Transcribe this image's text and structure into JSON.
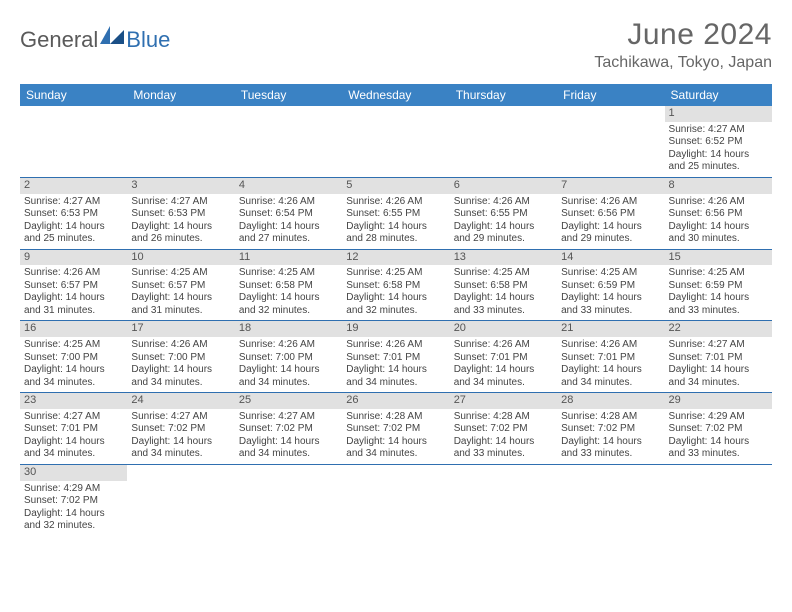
{
  "brand": {
    "general": "General",
    "blue": "Blue"
  },
  "title": "June 2024",
  "location": "Tachikawa, Tokyo, Japan",
  "colors": {
    "header_bg": "#3a82c4",
    "header_text": "#ffffff",
    "daynum_bg": "#e1e1e1",
    "border": "#2f6fb0",
    "logo_accent": "#2f6fb0",
    "text": "#444444"
  },
  "calendar": {
    "type": "table",
    "columns": [
      "Sunday",
      "Monday",
      "Tuesday",
      "Wednesday",
      "Thursday",
      "Friday",
      "Saturday"
    ],
    "weeks": [
      [
        null,
        null,
        null,
        null,
        null,
        null,
        {
          "n": "1",
          "sr": "Sunrise: 4:27 AM",
          "ss": "Sunset: 6:52 PM",
          "d1": "Daylight: 14 hours",
          "d2": "and 25 minutes."
        }
      ],
      [
        {
          "n": "2",
          "sr": "Sunrise: 4:27 AM",
          "ss": "Sunset: 6:53 PM",
          "d1": "Daylight: 14 hours",
          "d2": "and 25 minutes."
        },
        {
          "n": "3",
          "sr": "Sunrise: 4:27 AM",
          "ss": "Sunset: 6:53 PM",
          "d1": "Daylight: 14 hours",
          "d2": "and 26 minutes."
        },
        {
          "n": "4",
          "sr": "Sunrise: 4:26 AM",
          "ss": "Sunset: 6:54 PM",
          "d1": "Daylight: 14 hours",
          "d2": "and 27 minutes."
        },
        {
          "n": "5",
          "sr": "Sunrise: 4:26 AM",
          "ss": "Sunset: 6:55 PM",
          "d1": "Daylight: 14 hours",
          "d2": "and 28 minutes."
        },
        {
          "n": "6",
          "sr": "Sunrise: 4:26 AM",
          "ss": "Sunset: 6:55 PM",
          "d1": "Daylight: 14 hours",
          "d2": "and 29 minutes."
        },
        {
          "n": "7",
          "sr": "Sunrise: 4:26 AM",
          "ss": "Sunset: 6:56 PM",
          "d1": "Daylight: 14 hours",
          "d2": "and 29 minutes."
        },
        {
          "n": "8",
          "sr": "Sunrise: 4:26 AM",
          "ss": "Sunset: 6:56 PM",
          "d1": "Daylight: 14 hours",
          "d2": "and 30 minutes."
        }
      ],
      [
        {
          "n": "9",
          "sr": "Sunrise: 4:26 AM",
          "ss": "Sunset: 6:57 PM",
          "d1": "Daylight: 14 hours",
          "d2": "and 31 minutes."
        },
        {
          "n": "10",
          "sr": "Sunrise: 4:25 AM",
          "ss": "Sunset: 6:57 PM",
          "d1": "Daylight: 14 hours",
          "d2": "and 31 minutes."
        },
        {
          "n": "11",
          "sr": "Sunrise: 4:25 AM",
          "ss": "Sunset: 6:58 PM",
          "d1": "Daylight: 14 hours",
          "d2": "and 32 minutes."
        },
        {
          "n": "12",
          "sr": "Sunrise: 4:25 AM",
          "ss": "Sunset: 6:58 PM",
          "d1": "Daylight: 14 hours",
          "d2": "and 32 minutes."
        },
        {
          "n": "13",
          "sr": "Sunrise: 4:25 AM",
          "ss": "Sunset: 6:58 PM",
          "d1": "Daylight: 14 hours",
          "d2": "and 33 minutes."
        },
        {
          "n": "14",
          "sr": "Sunrise: 4:25 AM",
          "ss": "Sunset: 6:59 PM",
          "d1": "Daylight: 14 hours",
          "d2": "and 33 minutes."
        },
        {
          "n": "15",
          "sr": "Sunrise: 4:25 AM",
          "ss": "Sunset: 6:59 PM",
          "d1": "Daylight: 14 hours",
          "d2": "and 33 minutes."
        }
      ],
      [
        {
          "n": "16",
          "sr": "Sunrise: 4:25 AM",
          "ss": "Sunset: 7:00 PM",
          "d1": "Daylight: 14 hours",
          "d2": "and 34 minutes."
        },
        {
          "n": "17",
          "sr": "Sunrise: 4:26 AM",
          "ss": "Sunset: 7:00 PM",
          "d1": "Daylight: 14 hours",
          "d2": "and 34 minutes."
        },
        {
          "n": "18",
          "sr": "Sunrise: 4:26 AM",
          "ss": "Sunset: 7:00 PM",
          "d1": "Daylight: 14 hours",
          "d2": "and 34 minutes."
        },
        {
          "n": "19",
          "sr": "Sunrise: 4:26 AM",
          "ss": "Sunset: 7:01 PM",
          "d1": "Daylight: 14 hours",
          "d2": "and 34 minutes."
        },
        {
          "n": "20",
          "sr": "Sunrise: 4:26 AM",
          "ss": "Sunset: 7:01 PM",
          "d1": "Daylight: 14 hours",
          "d2": "and 34 minutes."
        },
        {
          "n": "21",
          "sr": "Sunrise: 4:26 AM",
          "ss": "Sunset: 7:01 PM",
          "d1": "Daylight: 14 hours",
          "d2": "and 34 minutes."
        },
        {
          "n": "22",
          "sr": "Sunrise: 4:27 AM",
          "ss": "Sunset: 7:01 PM",
          "d1": "Daylight: 14 hours",
          "d2": "and 34 minutes."
        }
      ],
      [
        {
          "n": "23",
          "sr": "Sunrise: 4:27 AM",
          "ss": "Sunset: 7:01 PM",
          "d1": "Daylight: 14 hours",
          "d2": "and 34 minutes."
        },
        {
          "n": "24",
          "sr": "Sunrise: 4:27 AM",
          "ss": "Sunset: 7:02 PM",
          "d1": "Daylight: 14 hours",
          "d2": "and 34 minutes."
        },
        {
          "n": "25",
          "sr": "Sunrise: 4:27 AM",
          "ss": "Sunset: 7:02 PM",
          "d1": "Daylight: 14 hours",
          "d2": "and 34 minutes."
        },
        {
          "n": "26",
          "sr": "Sunrise: 4:28 AM",
          "ss": "Sunset: 7:02 PM",
          "d1": "Daylight: 14 hours",
          "d2": "and 34 minutes."
        },
        {
          "n": "27",
          "sr": "Sunrise: 4:28 AM",
          "ss": "Sunset: 7:02 PM",
          "d1": "Daylight: 14 hours",
          "d2": "and 33 minutes."
        },
        {
          "n": "28",
          "sr": "Sunrise: 4:28 AM",
          "ss": "Sunset: 7:02 PM",
          "d1": "Daylight: 14 hours",
          "d2": "and 33 minutes."
        },
        {
          "n": "29",
          "sr": "Sunrise: 4:29 AM",
          "ss": "Sunset: 7:02 PM",
          "d1": "Daylight: 14 hours",
          "d2": "and 33 minutes."
        }
      ],
      [
        {
          "n": "30",
          "sr": "Sunrise: 4:29 AM",
          "ss": "Sunset: 7:02 PM",
          "d1": "Daylight: 14 hours",
          "d2": "and 32 minutes."
        },
        null,
        null,
        null,
        null,
        null,
        null
      ]
    ]
  }
}
